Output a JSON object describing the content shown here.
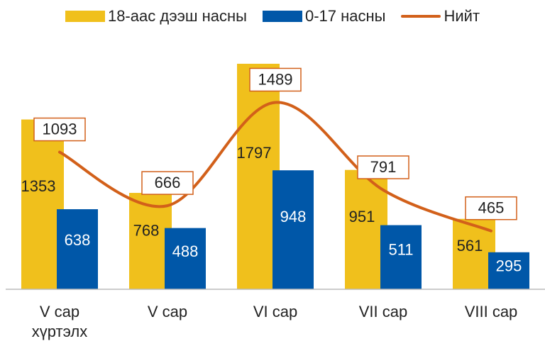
{
  "chart_data": {
    "type": "bar-line",
    "categories": [
      "V сар хүртэлх",
      "V сар",
      "VI сар",
      "VII сар",
      "VIII сар"
    ],
    "series": [
      {
        "name": "18-аас дээш насны",
        "color": "#f0c01c",
        "type": "bar",
        "values": [
          1353,
          768,
          1797,
          951,
          561
        ]
      },
      {
        "name": "0-17 насны",
        "color": "#0057a8",
        "type": "bar",
        "values": [
          638,
          488,
          948,
          511,
          295
        ]
      },
      {
        "name": "Нийт",
        "color": "#d2601a",
        "type": "line",
        "values": [
          1093,
          666,
          1489,
          791,
          465
        ]
      }
    ],
    "ylim": [
      0,
      2000
    ],
    "legend": "top"
  }
}
